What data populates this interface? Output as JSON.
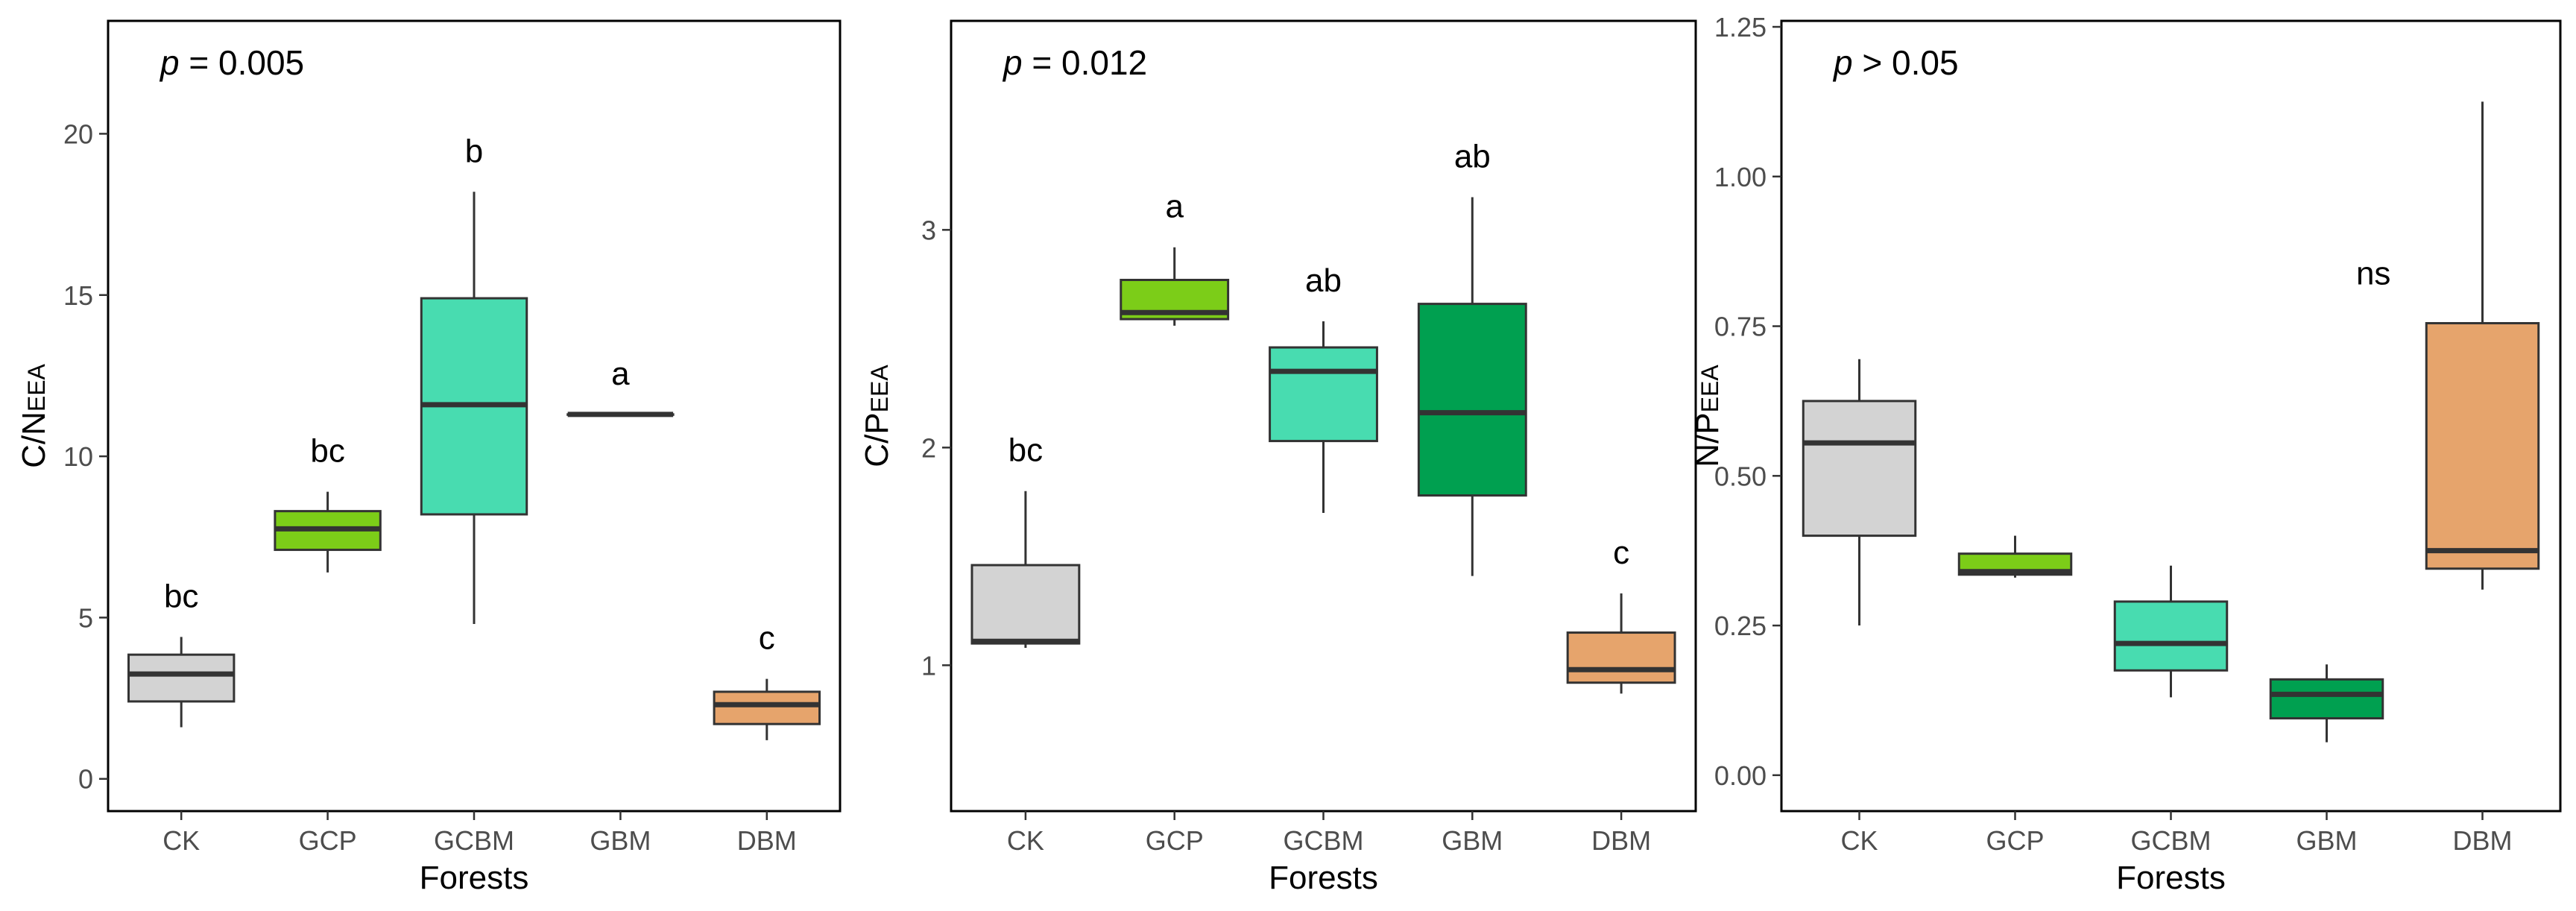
{
  "chart_data": [
    {
      "type": "boxplot",
      "xlabel": "Forests",
      "ylabel_main": "C/N",
      "ylabel_sub": "EEA",
      "ylim": [
        -1,
        23.5
      ],
      "yticks": [
        0,
        5,
        10,
        15,
        20
      ],
      "ytick_labels": [
        "0",
        "5",
        "10",
        "15",
        "20"
      ],
      "categories": [
        "CK",
        "GCP",
        "GCBM",
        "GBM",
        "DBM"
      ],
      "colors": [
        "#d3d3d3",
        "#7ccd18",
        "#48dcb0",
        "#00a050",
        "#e6a46c"
      ],
      "p_label": {
        "italic": "p",
        "rest": " = 0.005"
      },
      "boxes": [
        {
          "name": "CK",
          "min": 1.6,
          "q1": 2.4,
          "median": 3.25,
          "q3": 3.85,
          "max": 4.4,
          "letter": "bc"
        },
        {
          "name": "GCP",
          "min": 6.4,
          "q1": 7.1,
          "median": 7.75,
          "q3": 8.3,
          "max": 8.9,
          "letter": "bc"
        },
        {
          "name": "GCBM",
          "min": 4.8,
          "q1": 8.2,
          "median": 11.6,
          "q3": 14.9,
          "max": 18.2,
          "letter": "b"
        },
        {
          "name": "GBM",
          "min": 11.3,
          "q1": 11.3,
          "median": 11.3,
          "q3": 11.3,
          "max": 11.3,
          "letter": "a"
        },
        {
          "name": "DBM",
          "min": 1.2,
          "q1": 1.7,
          "median": 2.3,
          "q3": 2.7,
          "max": 3.1,
          "letter": "c"
        }
      ]
    },
    {
      "type": "boxplot",
      "xlabel": "Forests",
      "ylabel_main": "C/P",
      "ylabel_sub": "EEA",
      "ylim": [
        0.33,
        3.96
      ],
      "yticks": [
        1,
        2,
        3
      ],
      "ytick_labels": [
        "1",
        "2",
        "3"
      ],
      "categories": [
        "CK",
        "GCP",
        "GCBM",
        "GBM",
        "DBM"
      ],
      "colors": [
        "#d3d3d3",
        "#7ccd18",
        "#48dcb0",
        "#00a050",
        "#e6a46c"
      ],
      "p_label": {
        "italic": "p",
        "rest": " = 0.012"
      },
      "boxes": [
        {
          "name": "CK",
          "min": 1.08,
          "q1": 1.1,
          "median": 1.11,
          "q3": 1.46,
          "max": 1.8,
          "letter": "bc"
        },
        {
          "name": "GCP",
          "min": 2.56,
          "q1": 2.59,
          "median": 2.62,
          "q3": 2.77,
          "max": 2.92,
          "letter": "a"
        },
        {
          "name": "GCBM",
          "min": 1.7,
          "q1": 2.03,
          "median": 2.35,
          "q3": 2.46,
          "max": 2.58,
          "letter": "ab"
        },
        {
          "name": "GBM",
          "min": 1.41,
          "q1": 1.78,
          "median": 2.16,
          "q3": 2.66,
          "max": 3.15,
          "letter": "ab"
        },
        {
          "name": "DBM",
          "min": 0.87,
          "q1": 0.92,
          "median": 0.98,
          "q3": 1.15,
          "max": 1.33,
          "letter": "c"
        }
      ]
    },
    {
      "type": "boxplot",
      "xlabel": "Forests",
      "ylabel_main": "N/P",
      "ylabel_sub": "EEA",
      "ylim": [
        -0.06,
        1.26
      ],
      "yticks": [
        0,
        0.25,
        0.5,
        0.75,
        1,
        1.25
      ],
      "ytick_labels": [
        "0.00",
        "0.25",
        "0.50",
        "0.75",
        "1.00",
        "1.25"
      ],
      "categories": [
        "CK",
        "GCP",
        "GCBM",
        "GBM",
        "DBM"
      ],
      "colors": [
        "#d3d3d3",
        "#7ccd18",
        "#48dcb0",
        "#00a050",
        "#e6a46c"
      ],
      "p_label": {
        "italic": "p",
        "rest": " > 0.05"
      },
      "annotation": "ns",
      "boxes": [
        {
          "name": "CK",
          "min": 0.25,
          "q1": 0.4,
          "median": 0.555,
          "q3": 0.625,
          "max": 0.695,
          "letter": ""
        },
        {
          "name": "GCP",
          "min": 0.33,
          "q1": 0.335,
          "median": 0.34,
          "q3": 0.37,
          "max": 0.4,
          "letter": ""
        },
        {
          "name": "GCBM",
          "min": 0.13,
          "q1": 0.175,
          "median": 0.22,
          "q3": 0.29,
          "max": 0.35,
          "letter": ""
        },
        {
          "name": "GBM",
          "min": 0.055,
          "q1": 0.095,
          "median": 0.135,
          "q3": 0.16,
          "max": 0.185,
          "letter": ""
        },
        {
          "name": "DBM",
          "min": 0.31,
          "q1": 0.345,
          "median": 0.375,
          "q3": 0.755,
          "max": 1.125,
          "letter": ""
        }
      ]
    }
  ]
}
